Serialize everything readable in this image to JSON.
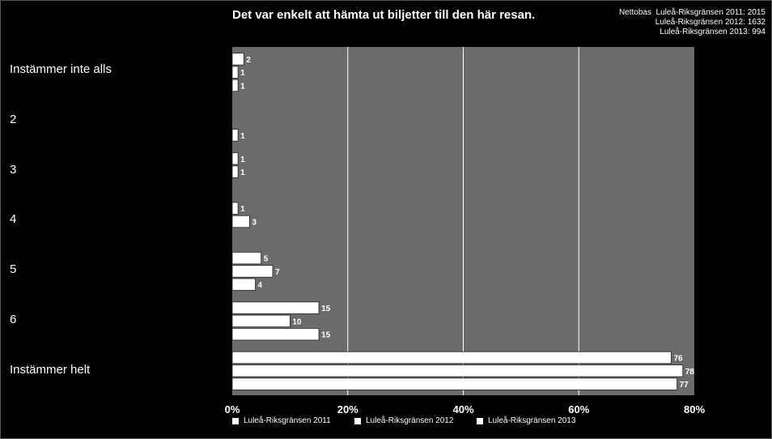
{
  "chart_data": {
    "type": "bar",
    "orientation": "horizontal",
    "title": "Det var enkelt att hämta ut biljetter till den här resan.",
    "netto": {
      "label": "Nettobas",
      "lines": [
        "Luleå-Riksgränsen 2011: 2015",
        "Luleå-Riksgränsen 2012: 1632",
        "Luleå-Riksgränsen 2013: 994"
      ]
    },
    "categories": [
      "Instämmer inte alls",
      "2",
      "3",
      "4",
      "5",
      "6",
      "Instämmer helt"
    ],
    "series": [
      {
        "name": "Luleå-Riksgränsen 2011",
        "values": [
          2,
          null,
          1,
          1,
          5,
          15,
          76
        ]
      },
      {
        "name": "Luleå-Riksgränsen 2012",
        "values": [
          1,
          null,
          1,
          3,
          7,
          10,
          78
        ]
      },
      {
        "name": "Luleå-Riksgränsen 2013",
        "values": [
          1,
          1,
          null,
          null,
          4,
          15,
          77
        ]
      }
    ],
    "xlim": [
      0,
      80
    ],
    "xticks": [
      "0%",
      "20%",
      "40%",
      "60%",
      "80%"
    ],
    "grid": true,
    "legend_position": "bottom",
    "colors": {
      "plot_bg": "#6b6b6b",
      "bar": "#ffffff",
      "bar_stroke": "#222222",
      "grid": "#ffffff",
      "page_bg": "#000000"
    }
  }
}
